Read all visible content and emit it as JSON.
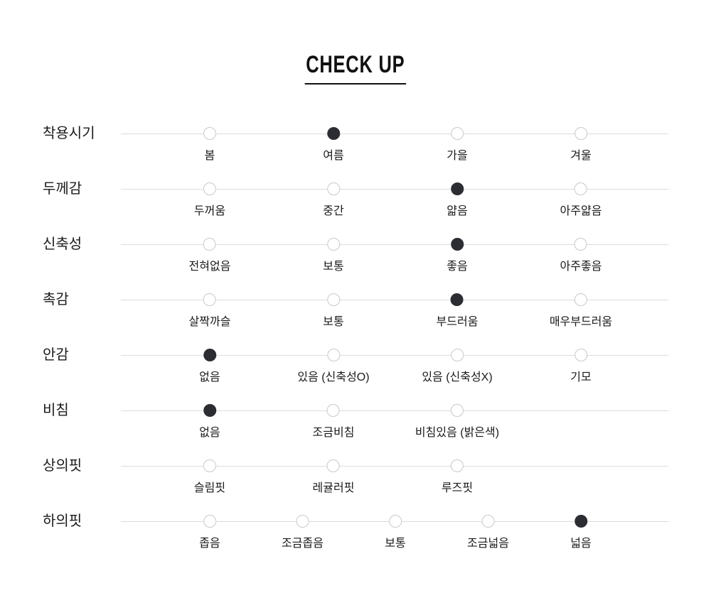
{
  "title": "CHECK UP",
  "colors": {
    "text": "#1a1a1a",
    "track_line": "#dcdcdc",
    "empty_dot_border": "#c9c9c9",
    "selected_dot_fill": "#2b2d33"
  },
  "chart_data": {
    "type": "dot-scale",
    "title": "CHECK UP",
    "rows": [
      {
        "label": "착용시기",
        "grid_columns": 4,
        "selected": "여름",
        "options": [
          {
            "text": "봄",
            "selected": false
          },
          {
            "text": "여름",
            "selected": true
          },
          {
            "text": "가을",
            "selected": false
          },
          {
            "text": "겨울",
            "selected": false
          }
        ]
      },
      {
        "label": "두께감",
        "grid_columns": 4,
        "selected": "얇음",
        "options": [
          {
            "text": "두꺼움",
            "selected": false
          },
          {
            "text": "중간",
            "selected": false
          },
          {
            "text": "얇음",
            "selected": true
          },
          {
            "text": "아주얇음",
            "selected": false
          }
        ]
      },
      {
        "label": "신축성",
        "grid_columns": 4,
        "selected": "좋음",
        "options": [
          {
            "text": "전혀없음",
            "selected": false
          },
          {
            "text": "보통",
            "selected": false
          },
          {
            "text": "좋음",
            "selected": true
          },
          {
            "text": "아주좋음",
            "selected": false
          }
        ]
      },
      {
        "label": "촉감",
        "grid_columns": 4,
        "selected": "부드러움",
        "options": [
          {
            "text": "살짝까슬",
            "selected": false
          },
          {
            "text": "보통",
            "selected": false
          },
          {
            "text": "부드러움",
            "selected": true
          },
          {
            "text": "매우부드러움",
            "selected": false
          }
        ]
      },
      {
        "label": "안감",
        "grid_columns": 4,
        "selected": "없음",
        "options": [
          {
            "text": "없음",
            "selected": true
          },
          {
            "text": "있음 (신축성O)",
            "selected": false
          },
          {
            "text": "있음 (신축성X)",
            "selected": false
          },
          {
            "text": "기모",
            "selected": false
          }
        ]
      },
      {
        "label": "비침",
        "grid_columns": 4,
        "selected": "없음",
        "options": [
          {
            "text": "없음",
            "selected": true
          },
          {
            "text": "조금비침",
            "selected": false
          },
          {
            "text": "비침있음 (밝은색)",
            "selected": false
          }
        ]
      },
      {
        "label": "상의핏",
        "grid_columns": 4,
        "selected": null,
        "options": [
          {
            "text": "슬림핏",
            "selected": false
          },
          {
            "text": "레귤러핏",
            "selected": false
          },
          {
            "text": "루즈핏",
            "selected": false
          }
        ]
      },
      {
        "label": "하의핏",
        "grid_columns": 5,
        "selected": "넓음",
        "options": [
          {
            "text": "좁음",
            "selected": false
          },
          {
            "text": "조금좁음",
            "selected": false
          },
          {
            "text": "보통",
            "selected": false
          },
          {
            "text": "조금넓음",
            "selected": false
          },
          {
            "text": "넓음",
            "selected": true
          }
        ]
      }
    ]
  }
}
